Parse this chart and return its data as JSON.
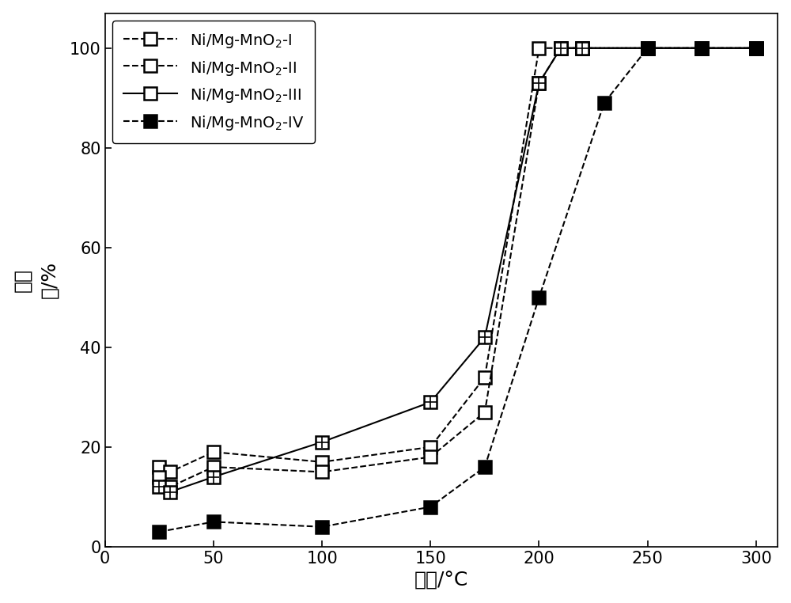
{
  "series": [
    {
      "label": "Ni/Mg-MnO$_2$-I",
      "x": [
        25,
        30,
        50,
        100,
        150,
        175,
        200,
        210,
        220,
        250,
        275,
        300
      ],
      "y": [
        16,
        15,
        19,
        17,
        20,
        34,
        100,
        100,
        100,
        100,
        100,
        100
      ],
      "marker": "square_open",
      "linestyle": "--"
    },
    {
      "label": "Ni/Mg-MnO$_2$-II",
      "x": [
        25,
        30,
        50,
        100,
        150,
        175,
        200,
        210,
        220,
        250,
        275,
        300
      ],
      "y": [
        14,
        12,
        16,
        15,
        18,
        27,
        93,
        100,
        100,
        100,
        100,
        100
      ],
      "marker": "square_open",
      "linestyle": "--"
    },
    {
      "label": "Ni/Mg-MnO$_2$-III",
      "x": [
        25,
        30,
        50,
        100,
        150,
        175,
        200,
        210,
        220,
        250,
        275,
        300
      ],
      "y": [
        12,
        11,
        14,
        21,
        29,
        42,
        93,
        100,
        100,
        100,
        100,
        100
      ],
      "marker": "square_plus",
      "linestyle": "-"
    },
    {
      "label": "Ni/Mg-MnO$_2$-IV",
      "x": [
        25,
        50,
        100,
        150,
        175,
        200,
        230,
        250,
        275,
        300
      ],
      "y": [
        3,
        5,
        4,
        8,
        16,
        50,
        89,
        100,
        100,
        100
      ],
      "marker": "square_filled",
      "linestyle": "--"
    }
  ],
  "xlabel": "温度/°C",
  "ylabel": "转化\n率/%",
  "xlim": [
    0,
    310
  ],
  "ylim": [
    0,
    107
  ],
  "xticks": [
    0,
    50,
    100,
    150,
    200,
    250,
    300
  ],
  "yticks": [
    0,
    20,
    40,
    60,
    80,
    100
  ],
  "figsize": [
    10.0,
    7.62
  ],
  "dpi": 100,
  "linewidth": 1.5,
  "markersize": 11,
  "markeredgewidth": 1.8,
  "tick_labelsize": 15,
  "axis_labelsize": 18
}
